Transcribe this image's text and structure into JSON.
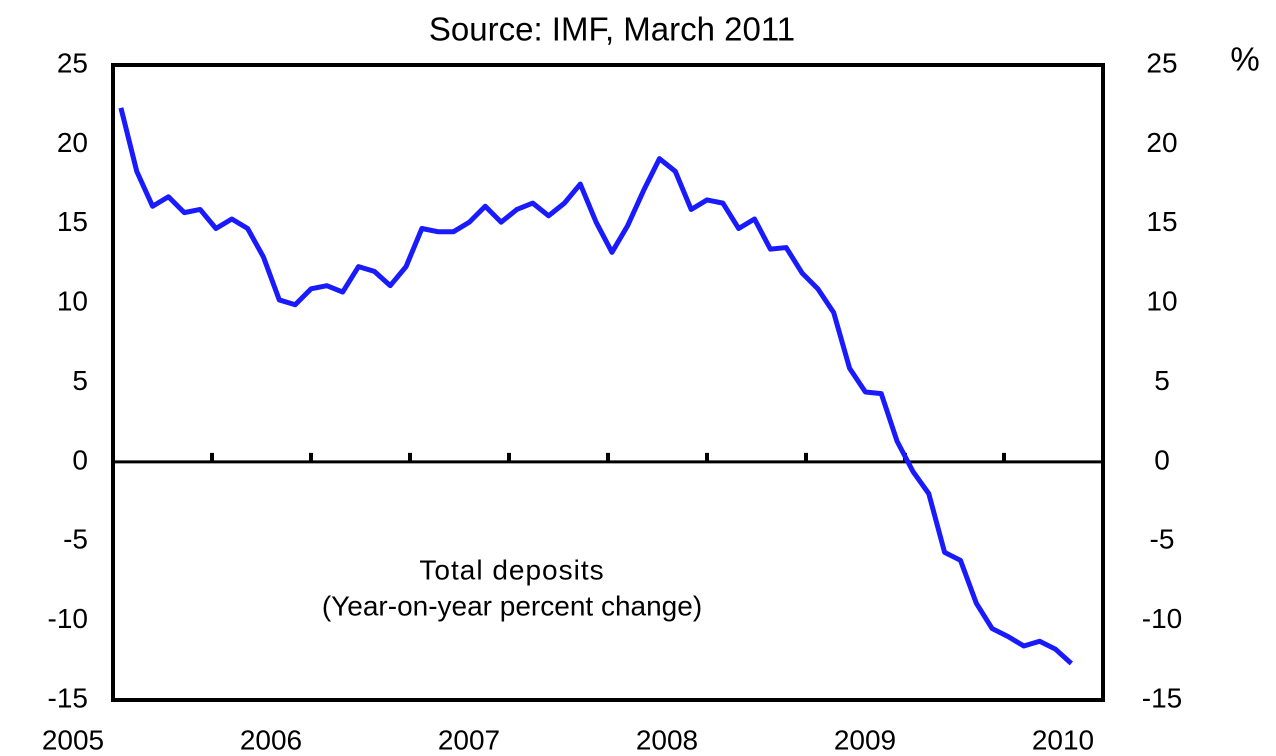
{
  "chart_data": {
    "type": "line",
    "title": "Source: IMF, March 2011",
    "y_unit_label": "%",
    "annotation": [
      "Total deposits",
      "(Year-on-year percent change)"
    ],
    "x": [
      2005.04,
      2005.12,
      2005.2,
      2005.28,
      2005.36,
      2005.44,
      2005.52,
      2005.6,
      2005.68,
      2005.76,
      2005.84,
      2005.92,
      2006.0,
      2006.08,
      2006.16,
      2006.24,
      2006.32,
      2006.4,
      2006.48,
      2006.56,
      2006.64,
      2006.72,
      2006.8,
      2006.88,
      2006.96,
      2007.04,
      2007.12,
      2007.2,
      2007.28,
      2007.36,
      2007.44,
      2007.52,
      2007.6,
      2007.68,
      2007.76,
      2007.84,
      2007.92,
      2008.0,
      2008.08,
      2008.16,
      2008.24,
      2008.32,
      2008.4,
      2008.48,
      2008.56,
      2008.64,
      2008.72,
      2008.8,
      2008.88,
      2008.96,
      2009.04,
      2009.12,
      2009.2,
      2009.28,
      2009.36,
      2009.44,
      2009.52,
      2009.6,
      2009.68,
      2009.76,
      2009.84
    ],
    "series": [
      {
        "name": "Total deposits",
        "color": "#1a1aff",
        "values": [
          22.3,
          18.3,
          16.1,
          16.7,
          15.7,
          15.9,
          14.7,
          15.3,
          14.7,
          12.9,
          10.2,
          9.9,
          10.9,
          11.1,
          10.7,
          12.3,
          12.0,
          11.1,
          12.3,
          14.7,
          14.5,
          14.5,
          15.1,
          16.1,
          15.1,
          15.9,
          16.3,
          15.5,
          16.3,
          17.5,
          15.1,
          13.2,
          14.9,
          17.1,
          19.1,
          18.3,
          15.9,
          16.5,
          16.3,
          14.7,
          15.3,
          13.4,
          13.5,
          11.9,
          10.9,
          9.4,
          5.9,
          4.4,
          4.3,
          1.3,
          -0.6,
          -2.0,
          -5.7,
          -6.2,
          -8.9,
          -10.5,
          -11.0,
          -11.6,
          -11.3,
          -11.8,
          -12.7
        ]
      }
    ],
    "xlim": [
      2005,
      2010
    ],
    "xticks": [
      2005,
      2006,
      2007,
      2008,
      2009,
      2010
    ],
    "ylim": [
      -15,
      25
    ],
    "yticks": [
      -15,
      -10,
      -5,
      0,
      5,
      10,
      15,
      20,
      25
    ],
    "y2lim": [
      -15,
      25
    ],
    "y2ticks": [
      -15,
      -10,
      -5,
      0,
      5,
      10,
      15,
      20,
      25
    ],
    "grid": false
  }
}
